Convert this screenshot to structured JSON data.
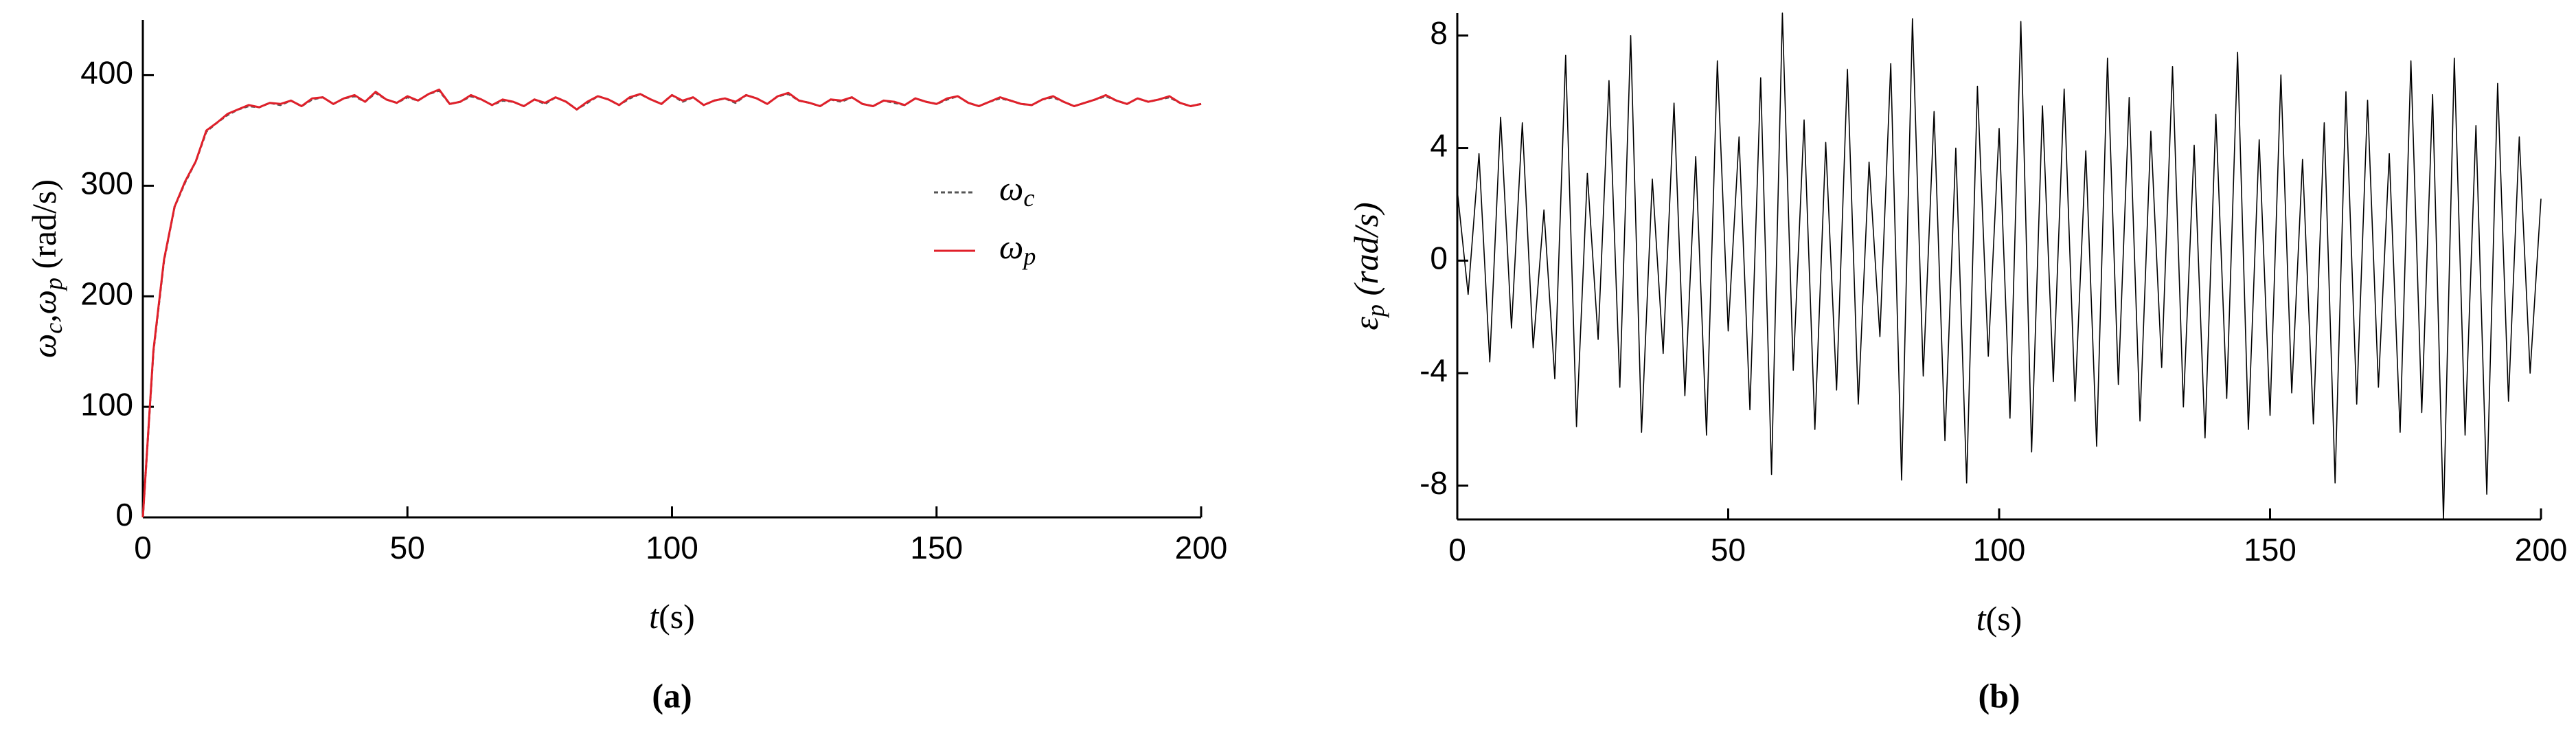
{
  "chart_data": [
    {
      "type": "line",
      "caption": "(a)",
      "x_label": [
        "t",
        "(s)"
      ],
      "y_label": [
        "ω",
        "c",
        ",ω",
        "p",
        " (rad/s)"
      ],
      "x": [
        0,
        2,
        4,
        6,
        8,
        10,
        12,
        14,
        16,
        18,
        20,
        22,
        24,
        26,
        28,
        30,
        32,
        34,
        36,
        38,
        40,
        42,
        44,
        46,
        48,
        50,
        52,
        54,
        56,
        58,
        60,
        62,
        64,
        66,
        68,
        70,
        72,
        74,
        76,
        78,
        80,
        82,
        84,
        86,
        88,
        90,
        92,
        94,
        96,
        98,
        100,
        102,
        104,
        106,
        108,
        110,
        112,
        114,
        116,
        118,
        120,
        122,
        124,
        126,
        128,
        130,
        132,
        134,
        136,
        138,
        140,
        142,
        144,
        146,
        148,
        150,
        152,
        154,
        156,
        158,
        160,
        162,
        164,
        166,
        168,
        170,
        172,
        174,
        176,
        178,
        180,
        182,
        184,
        186,
        188,
        190,
        192,
        194,
        196,
        198,
        200
      ],
      "series": [
        {
          "name": [
            "ω",
            "c"
          ],
          "color": "#555555",
          "dash": true,
          "values": [
            0,
            150,
            232,
            281,
            303,
            322,
            349,
            357,
            364,
            369,
            372,
            371,
            375,
            373,
            377,
            372,
            378,
            380,
            374,
            379,
            381,
            376,
            384,
            378,
            375,
            380,
            377,
            383,
            386,
            374,
            376,
            381,
            378,
            373,
            377,
            376,
            372,
            378,
            374,
            380,
            376,
            369,
            375,
            381,
            378,
            373,
            379,
            383,
            378,
            374,
            382,
            376,
            380,
            373,
            377,
            379,
            375,
            382,
            379,
            374,
            381,
            383,
            377,
            375,
            372,
            378,
            376,
            380,
            374,
            372,
            377,
            375,
            373,
            379,
            376,
            374,
            378,
            381,
            375,
            372,
            376,
            379,
            377,
            374,
            373,
            378,
            380,
            376,
            372,
            375,
            378,
            381,
            377,
            374,
            379,
            376,
            378,
            380,
            375,
            372,
            374
          ]
        },
        {
          "name": [
            "ω",
            "p"
          ],
          "color": "#e0202a",
          "dash": false,
          "values": [
            0,
            151,
            233,
            281,
            304,
            322,
            350,
            357,
            365,
            369,
            373,
            371,
            375,
            374,
            377,
            372,
            379,
            380,
            374,
            379,
            382,
            376,
            385,
            378,
            375,
            381,
            377,
            383,
            387,
            374,
            376,
            382,
            378,
            373,
            378,
            376,
            372,
            378,
            375,
            380,
            376,
            369,
            376,
            381,
            378,
            373,
            380,
            383,
            378,
            374,
            382,
            377,
            380,
            373,
            377,
            379,
            376,
            382,
            379,
            374,
            381,
            384,
            377,
            375,
            372,
            378,
            377,
            380,
            374,
            372,
            377,
            376,
            373,
            379,
            376,
            374,
            379,
            381,
            375,
            372,
            376,
            380,
            377,
            374,
            373,
            378,
            381,
            376,
            372,
            375,
            378,
            382,
            377,
            374,
            379,
            376,
            378,
            381,
            375,
            372,
            374
          ]
        }
      ],
      "xlim": [
        0,
        200
      ],
      "xticks": [
        0,
        50,
        100,
        150,
        200
      ],
      "ylim": [
        0,
        450
      ],
      "yticks": [
        0,
        100,
        200,
        300,
        400
      ],
      "legend": "right"
    },
    {
      "type": "line",
      "caption": "(b)",
      "x_label": [
        "t",
        "(s)"
      ],
      "y_label": [
        "ε",
        "p",
        " (rad/s)"
      ],
      "x": [
        0,
        2,
        4,
        6,
        8,
        10,
        12,
        14,
        16,
        18,
        20,
        22,
        24,
        26,
        28,
        30,
        32,
        34,
        36,
        38,
        40,
        42,
        44,
        46,
        48,
        50,
        52,
        54,
        56,
        58,
        60,
        62,
        64,
        66,
        68,
        70,
        72,
        74,
        76,
        78,
        80,
        82,
        84,
        86,
        88,
        90,
        92,
        94,
        96,
        98,
        100,
        102,
        104,
        106,
        108,
        110,
        112,
        114,
        116,
        118,
        120,
        122,
        124,
        126,
        128,
        130,
        132,
        134,
        136,
        138,
        140,
        142,
        144,
        146,
        148,
        150,
        152,
        154,
        156,
        158,
        160,
        162,
        164,
        166,
        168,
        170,
        172,
        174,
        176,
        178,
        180,
        182,
        184,
        186,
        188,
        190,
        192,
        194,
        196,
        198,
        200
      ],
      "series": [
        {
          "color": "#000000",
          "dash": false,
          "values": [
            2.5,
            -1.2,
            3.8,
            -3.6,
            5.1,
            -2.4,
            4.9,
            -3.1,
            1.8,
            -4.2,
            7.3,
            -5.9,
            3.1,
            -2.8,
            6.4,
            -4.5,
            8.0,
            -6.1,
            2.9,
            -3.3,
            5.6,
            -4.8,
            3.7,
            -6.2,
            7.1,
            -2.5,
            4.4,
            -5.3,
            6.5,
            -7.6,
            8.8,
            -3.9,
            5.0,
            -6.0,
            4.2,
            -4.6,
            6.8,
            -5.1,
            3.5,
            -2.7,
            7.0,
            -7.8,
            8.6,
            -4.1,
            5.3,
            -6.4,
            4.0,
            -7.9,
            6.2,
            -3.4,
            4.7,
            -5.6,
            8.5,
            -6.8,
            5.5,
            -4.3,
            6.1,
            -5.0,
            3.9,
            -6.6,
            7.2,
            -4.4,
            5.8,
            -5.7,
            4.6,
            -3.8,
            6.9,
            -5.2,
            4.1,
            -6.3,
            5.2,
            -4.9,
            7.4,
            -6.0,
            4.3,
            -5.5,
            6.6,
            -4.7,
            3.6,
            -5.8,
            4.9,
            -7.9,
            6.0,
            -5.1,
            5.7,
            -4.5,
            3.8,
            -6.1,
            7.1,
            -5.4,
            5.9,
            -9.2,
            7.2,
            -6.2,
            4.8,
            -8.3,
            6.3,
            -5.0,
            4.4,
            -4.0,
            2.2
          ]
        }
      ],
      "xlim": [
        0,
        200
      ],
      "xticks": [
        0,
        50,
        100,
        150,
        200
      ],
      "ylim": [
        -9.2,
        8.8
      ],
      "yticks": [
        -8,
        -4,
        0,
        4,
        8
      ]
    }
  ]
}
